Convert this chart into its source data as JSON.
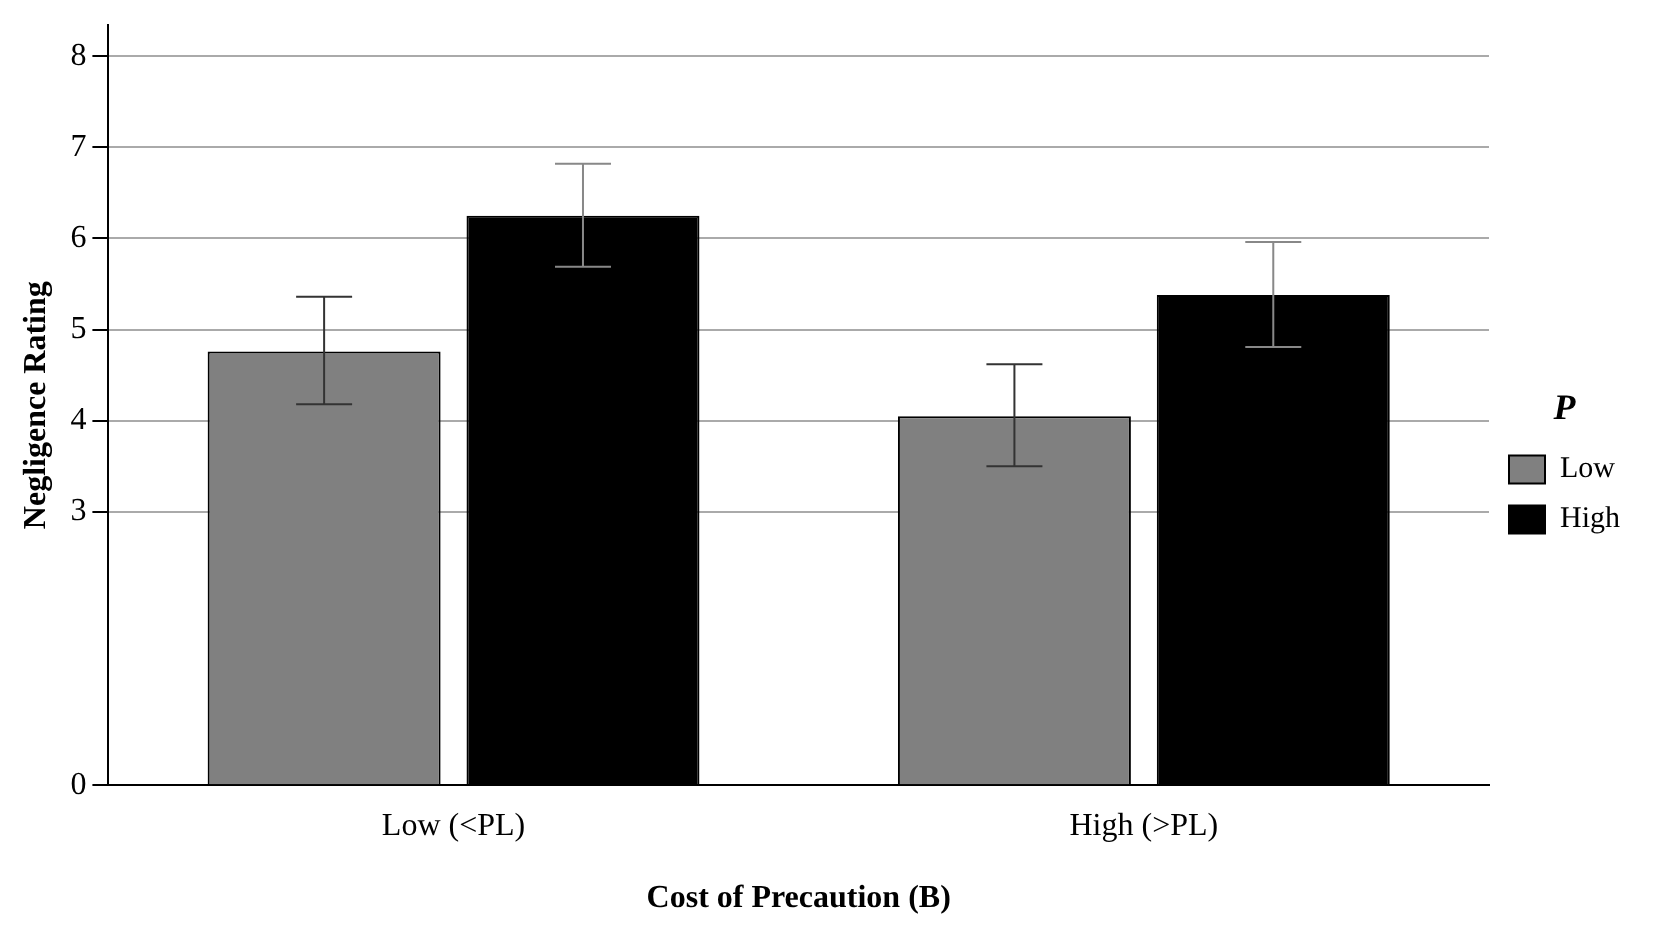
{
  "chart_data": {
    "type": "bar",
    "xlabel": "Cost of Precaution (B)",
    "ylabel": "Negligence Rating",
    "legend_title": "P",
    "categories": [
      "Low (<PL)",
      "High (>PL)"
    ],
    "series": [
      {
        "name": "Low",
        "color": "#808080",
        "values": [
          4.76,
          4.05
        ],
        "errors": [
          [
            4.18,
            5.36
          ],
          [
            3.5,
            4.62
          ]
        ]
      },
      {
        "name": "High",
        "color": "#000000",
        "values": [
          6.25,
          5.38
        ],
        "errors": [
          [
            5.69,
            6.82
          ],
          [
            4.81,
            5.96
          ]
        ]
      }
    ],
    "ylim": [
      0,
      8.34
    ],
    "yticks": [
      0,
      3,
      4,
      5,
      6,
      7,
      8
    ],
    "grid": "y",
    "legend": "right"
  }
}
